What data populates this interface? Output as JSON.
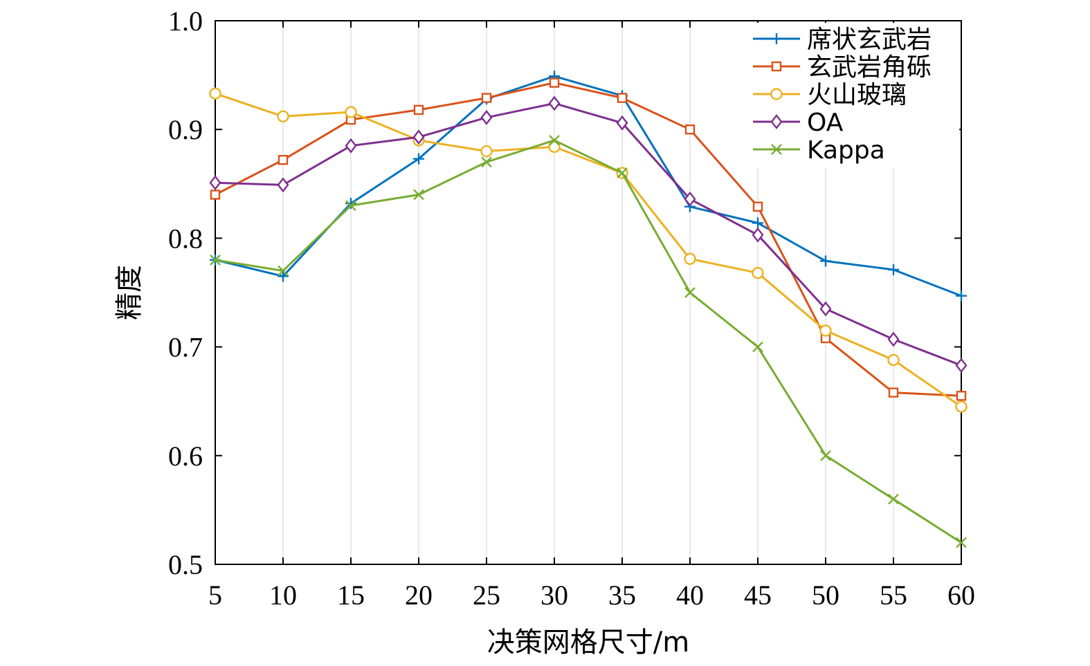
{
  "chart_data": {
    "type": "line",
    "xlabel": "决策网格尺寸/m",
    "ylabel": "精度",
    "x": [
      5,
      10,
      15,
      20,
      25,
      30,
      35,
      40,
      45,
      50,
      55,
      60
    ],
    "xlim": [
      5,
      60
    ],
    "ylim": [
      0.5,
      1.0
    ],
    "xticks": [
      "5",
      "10",
      "15",
      "20",
      "25",
      "30",
      "35",
      "40",
      "45",
      "50",
      "55",
      "60"
    ],
    "yticks": [
      "0.5",
      "0.6",
      "0.7",
      "0.8",
      "0.9",
      "1.0"
    ],
    "grid": "vertical",
    "legend_position": "top-right",
    "series": [
      {
        "name": "席状玄武岩",
        "color": "#0072BD",
        "marker": "plus",
        "values": [
          0.78,
          0.765,
          0.832,
          0.873,
          0.928,
          0.949,
          0.931,
          0.829,
          0.814,
          0.779,
          0.771,
          0.747
        ]
      },
      {
        "name": "玄武岩角砾",
        "color": "#D95319",
        "marker": "square",
        "values": [
          0.84,
          0.872,
          0.909,
          0.918,
          0.929,
          0.943,
          0.929,
          0.9,
          0.829,
          0.708,
          0.658,
          0.655
        ]
      },
      {
        "name": "火山玻璃",
        "color": "#EDB120",
        "marker": "circle",
        "values": [
          0.933,
          0.912,
          0.916,
          0.89,
          0.88,
          0.884,
          0.86,
          0.781,
          0.768,
          0.715,
          0.688,
          0.645
        ]
      },
      {
        "name": "OA",
        "color": "#7E2F8E",
        "marker": "diamond",
        "values": [
          0.851,
          0.849,
          0.885,
          0.893,
          0.911,
          0.924,
          0.906,
          0.836,
          0.803,
          0.735,
          0.707,
          0.683
        ]
      },
      {
        "name": "Kappa",
        "color": "#77AC30",
        "marker": "x",
        "values": [
          0.78,
          0.77,
          0.83,
          0.84,
          0.87,
          0.89,
          0.86,
          0.75,
          0.7,
          0.6,
          0.56,
          0.52
        ]
      }
    ]
  }
}
